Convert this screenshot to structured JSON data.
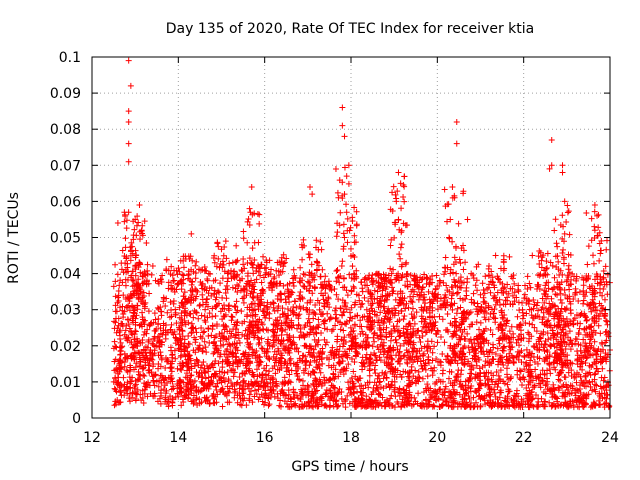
{
  "chart_data": {
    "type": "scatter",
    "title": "Day 135 of 2020, Rate Of TEC Index for receiver ktia",
    "xlabel": "GPS time / hours",
    "ylabel": "ROTI / TECUs",
    "xlim": [
      12,
      24
    ],
    "ylim": [
      0,
      0.1
    ],
    "xticks": [
      12,
      14,
      16,
      18,
      20,
      22,
      24
    ],
    "yticks": [
      0,
      0.01,
      0.02,
      0.03,
      0.04,
      0.05,
      0.06,
      0.07,
      0.08,
      0.09,
      0.1
    ],
    "xtick_labels": [
      "12",
      "14",
      "16",
      "18",
      "20",
      "22",
      "24"
    ],
    "ytick_labels": [
      "0",
      "0.01",
      "0.02",
      "0.03",
      "0.04",
      "0.05",
      "0.06",
      "0.07",
      "0.08",
      "0.09",
      "0.1"
    ],
    "grid": true,
    "marker": "plus",
    "color": "#ff0000",
    "series": [
      {
        "name": "ROTI",
        "x_range": [
          12.5,
          24.0
        ],
        "typical_range": [
          0.005,
          0.03
        ],
        "density_note": "dense scatter of several thousand points",
        "notable_points": [
          {
            "x": 12.85,
            "y": 0.099
          },
          {
            "x": 12.9,
            "y": 0.092
          },
          {
            "x": 12.85,
            "y": 0.085
          },
          {
            "x": 12.85,
            "y": 0.082
          },
          {
            "x": 12.85,
            "y": 0.076
          },
          {
            "x": 12.85,
            "y": 0.071
          },
          {
            "x": 12.75,
            "y": 0.057
          },
          {
            "x": 13.1,
            "y": 0.059
          },
          {
            "x": 13.0,
            "y": 0.055
          },
          {
            "x": 12.6,
            "y": 0.054
          },
          {
            "x": 13.15,
            "y": 0.052
          },
          {
            "x": 14.3,
            "y": 0.051
          },
          {
            "x": 15.1,
            "y": 0.049
          },
          {
            "x": 15.7,
            "y": 0.064
          },
          {
            "x": 15.65,
            "y": 0.058
          },
          {
            "x": 17.05,
            "y": 0.064
          },
          {
            "x": 17.1,
            "y": 0.062
          },
          {
            "x": 17.8,
            "y": 0.086
          },
          {
            "x": 17.8,
            "y": 0.081
          },
          {
            "x": 17.85,
            "y": 0.078
          },
          {
            "x": 17.95,
            "y": 0.07
          },
          {
            "x": 17.9,
            "y": 0.067
          },
          {
            "x": 17.85,
            "y": 0.062
          },
          {
            "x": 17.9,
            "y": 0.057
          },
          {
            "x": 17.85,
            "y": 0.05
          },
          {
            "x": 19.1,
            "y": 0.068
          },
          {
            "x": 19.15,
            "y": 0.065
          },
          {
            "x": 19.05,
            "y": 0.06
          },
          {
            "x": 19.1,
            "y": 0.055
          },
          {
            "x": 20.45,
            "y": 0.082
          },
          {
            "x": 20.45,
            "y": 0.076
          },
          {
            "x": 20.35,
            "y": 0.064
          },
          {
            "x": 20.4,
            "y": 0.061
          },
          {
            "x": 20.3,
            "y": 0.055
          },
          {
            "x": 20.7,
            "y": 0.055
          },
          {
            "x": 22.65,
            "y": 0.077
          },
          {
            "x": 22.65,
            "y": 0.07
          },
          {
            "x": 22.6,
            "y": 0.069
          },
          {
            "x": 22.9,
            "y": 0.07
          },
          {
            "x": 22.9,
            "y": 0.068
          },
          {
            "x": 22.95,
            "y": 0.06
          },
          {
            "x": 23.65,
            "y": 0.059
          },
          {
            "x": 23.7,
            "y": 0.056
          },
          {
            "x": 22.95,
            "y": 0.051
          },
          {
            "x": 23.65,
            "y": 0.052
          },
          {
            "x": 21.35,
            "y": 0.045
          },
          {
            "x": 22.2,
            "y": 0.045
          },
          {
            "x": 23.9,
            "y": 0.042
          },
          {
            "x": 19.5,
            "y": 0.038
          },
          {
            "x": 18.6,
            "y": 0.04
          }
        ],
        "activity_bursts": [
          {
            "center": 12.9,
            "peak": 0.057,
            "spread": 0.3
          },
          {
            "center": 13.1,
            "peak": 0.055,
            "spread": 0.2
          },
          {
            "center": 14.1,
            "peak": 0.045,
            "spread": 0.3
          },
          {
            "center": 15.1,
            "peak": 0.049,
            "spread": 0.3
          },
          {
            "center": 15.7,
            "peak": 0.058,
            "spread": 0.2
          },
          {
            "center": 16.3,
            "peak": 0.044,
            "spread": 0.4
          },
          {
            "center": 17.1,
            "peak": 0.05,
            "spread": 0.3
          },
          {
            "center": 17.9,
            "peak": 0.07,
            "spread": 0.25
          },
          {
            "center": 18.6,
            "peak": 0.04,
            "spread": 0.3
          },
          {
            "center": 19.1,
            "peak": 0.068,
            "spread": 0.2
          },
          {
            "center": 19.6,
            "peak": 0.04,
            "spread": 0.3
          },
          {
            "center": 20.4,
            "peak": 0.064,
            "spread": 0.25
          },
          {
            "center": 21.3,
            "peak": 0.045,
            "spread": 0.4
          },
          {
            "center": 22.6,
            "peak": 0.048,
            "spread": 0.3
          },
          {
            "center": 22.9,
            "peak": 0.06,
            "spread": 0.2
          },
          {
            "center": 23.7,
            "peak": 0.058,
            "spread": 0.25
          }
        ]
      }
    ]
  }
}
